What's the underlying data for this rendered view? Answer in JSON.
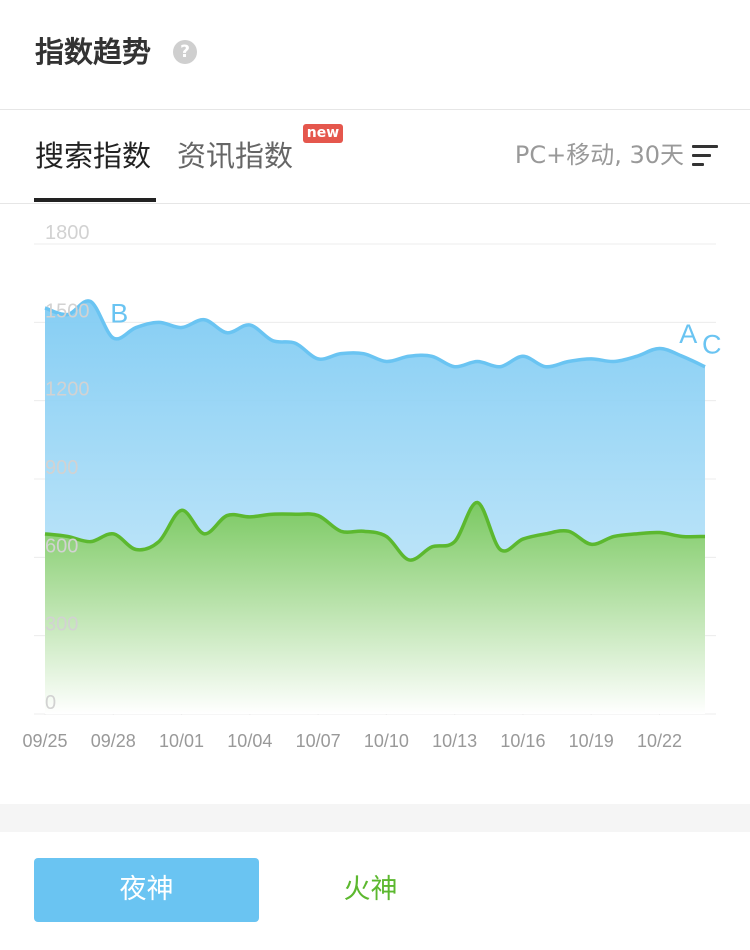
{
  "header": {
    "title": "指数趋势",
    "help_glyph": "?"
  },
  "tabs": [
    {
      "label": "搜索指数",
      "active": true
    },
    {
      "label": "资讯指数",
      "active": false,
      "badge": "new"
    }
  ],
  "filter": {
    "label": "PC+移动, 30天",
    "icon": "filter-lines-icon"
  },
  "colors": {
    "blue": "#6ac4f2",
    "green": "#5cb82f",
    "badge": "#e5574d"
  },
  "chart_data": {
    "type": "area",
    "x": [
      "09/25",
      "09/26",
      "09/27",
      "09/28",
      "09/29",
      "09/30",
      "10/01",
      "10/02",
      "10/03",
      "10/04",
      "10/05",
      "10/06",
      "10/07",
      "10/08",
      "10/09",
      "10/10",
      "10/11",
      "10/12",
      "10/13",
      "10/14",
      "10/15",
      "10/16",
      "10/17",
      "10/18",
      "10/19",
      "10/20",
      "10/21",
      "10/22",
      "10/23",
      "10/24"
    ],
    "x_tick_labels": [
      "09/25",
      "09/28",
      "10/01",
      "10/04",
      "10/07",
      "10/10",
      "10/13",
      "10/16",
      "10/19",
      "10/22"
    ],
    "y_ticks": [
      "1800",
      "1500",
      "1200",
      "900",
      "600",
      "300",
      "0"
    ],
    "ylim": [
      0,
      1800
    ],
    "grid": true,
    "series": [
      {
        "values": [
          1555,
          1530,
          1580,
          1440,
          1480,
          1500,
          1480,
          1510,
          1460,
          1490,
          1430,
          1420,
          1360,
          1380,
          1380,
          1350,
          1370,
          1370,
          1330,
          1350,
          1330,
          1370,
          1330,
          1350,
          1360,
          1350,
          1370,
          1400,
          1370,
          1330
        ],
        "color": "#6ac4f2"
      },
      {
        "values": [
          690,
          680,
          660,
          690,
          630,
          660,
          780,
          690,
          760,
          755,
          765,
          765,
          760,
          700,
          700,
          680,
          590,
          640,
          660,
          810,
          630,
          670,
          690,
          700,
          650,
          680,
          690,
          695,
          680,
          680
        ],
        "color": "#5cb82f"
      }
    ],
    "annotations": [
      {
        "text": "B",
        "x_index": 3,
        "y": 1500
      },
      {
        "text": "A",
        "x_index": 28,
        "y": 1420
      },
      {
        "text": "C",
        "x_index": 29,
        "y": 1380
      }
    ]
  },
  "buttons": {
    "ye": {
      "label": "夜神"
    },
    "huo": {
      "label": "火神"
    }
  }
}
